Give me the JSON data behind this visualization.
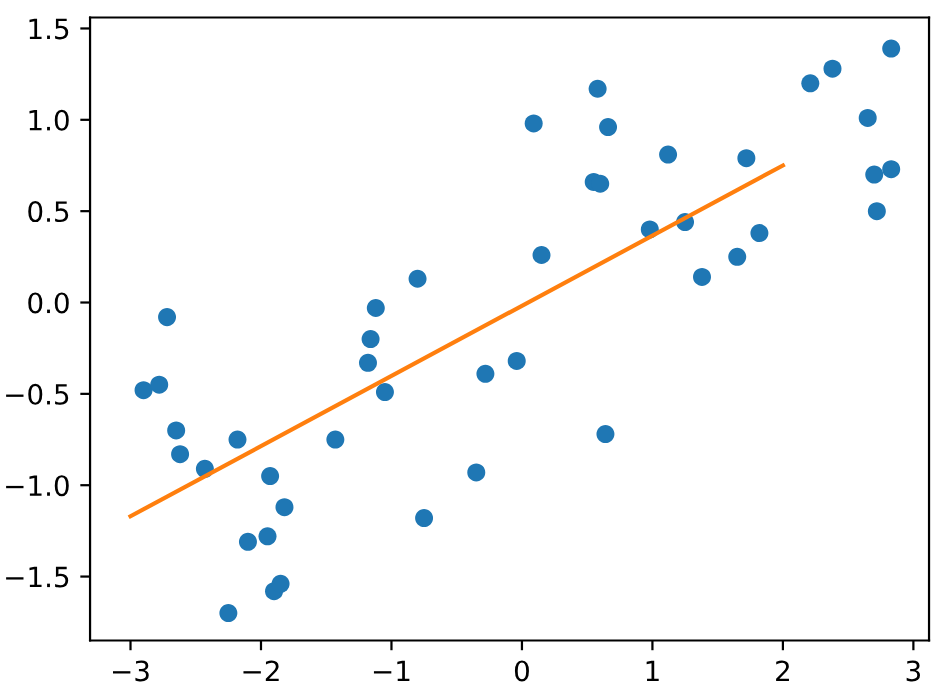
{
  "chart_data": {
    "type": "scatter",
    "xlim": [
      -3.31,
      3.12
    ],
    "ylim": [
      -1.85,
      1.56
    ],
    "grid": false,
    "legend": false,
    "xticks": [
      {
        "value": -3,
        "label": "−3"
      },
      {
        "value": -2,
        "label": "−2"
      },
      {
        "value": -1,
        "label": "−1"
      },
      {
        "value": 0,
        "label": "0"
      },
      {
        "value": 1,
        "label": "1"
      },
      {
        "value": 2,
        "label": "2"
      },
      {
        "value": 3,
        "label": "3"
      }
    ],
    "yticks": [
      {
        "value": -1.5,
        "label": "−1.5"
      },
      {
        "value": -1,
        "label": "−1.0"
      },
      {
        "value": -0.5,
        "label": "−0.5"
      },
      {
        "value": 0,
        "label": "0.0"
      },
      {
        "value": 0.5,
        "label": "0.5"
      },
      {
        "value": 1,
        "label": "1.0"
      },
      {
        "value": 1.5,
        "label": "1.5"
      }
    ],
    "series": [
      {
        "marker": "circle",
        "color": "#1f77b4",
        "x": [
          -2.9,
          -2.78,
          -2.72,
          -2.65,
          -2.62,
          -2.43,
          -2.18,
          -2.1,
          -1.95,
          -1.93,
          -1.9,
          -1.85,
          -1.82,
          -2.25,
          -1.43,
          -1.18,
          -1.16,
          -1.12,
          -1.05,
          -0.8,
          -0.75,
          -0.35,
          -0.28,
          -0.04,
          0.09,
          0.15,
          0.55,
          0.58,
          0.6,
          0.64,
          0.66,
          0.98,
          1.12,
          1.25,
          1.38,
          1.65,
          1.72,
          1.82,
          2.21,
          2.38,
          2.65,
          2.7,
          2.72,
          2.83,
          2.83
        ],
        "values": [
          -0.48,
          -0.45,
          -0.08,
          -0.7,
          -0.83,
          -0.91,
          -0.75,
          -1.31,
          -1.28,
          -0.95,
          -1.58,
          -1.54,
          -1.12,
          -1.7,
          -0.75,
          -0.33,
          -0.2,
          -0.03,
          -0.49,
          0.13,
          -1.18,
          -0.93,
          -0.39,
          -0.32,
          0.98,
          0.26,
          0.66,
          1.17,
          0.65,
          -0.72,
          0.96,
          0.4,
          0.81,
          0.44,
          0.14,
          0.25,
          0.79,
          0.38,
          1.2,
          1.28,
          1.01,
          0.7,
          0.5,
          0.73,
          1.39
        ]
      },
      {
        "type": "line",
        "marker": "none",
        "line_style": "solid",
        "color": "#ff7f0e",
        "x": [
          -3,
          2
        ],
        "values": [
          -1.17,
          0.75
        ]
      }
    ]
  }
}
